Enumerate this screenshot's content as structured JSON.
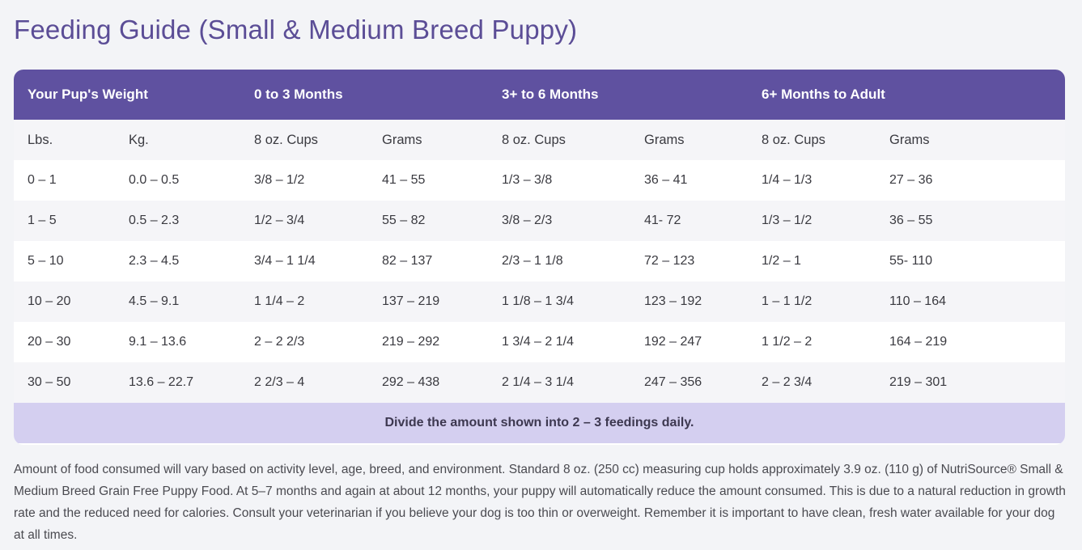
{
  "page": {
    "title": "Feeding Guide (Small & Medium Breed Puppy)"
  },
  "table": {
    "group_headers": {
      "weight": "Your Pup's Weight",
      "age_0_3": "0 to 3 Months",
      "age_3_6": "3+ to 6 Months",
      "age_6_adult": "6+ Months to Adult"
    },
    "sub_headers": [
      "Lbs.",
      "Kg.",
      "8 oz. Cups",
      "Grams",
      "8 oz. Cups",
      "Grams",
      "8 oz. Cups",
      "Grams"
    ],
    "rows": [
      [
        "0 – 1",
        "0.0 – 0.5",
        "3/8 – 1/2",
        "41 – 55",
        "1/3 – 3/8",
        "36 – 41",
        "1/4 – 1/3",
        "27 – 36"
      ],
      [
        "1 – 5",
        "0.5 – 2.3",
        "1/2 – 3/4",
        "55 – 82",
        "3/8 – 2/3",
        "41- 72",
        "1/3 – 1/2",
        "36 – 55"
      ],
      [
        "5 – 10",
        "2.3 – 4.5",
        "3/4 – 1 1/4",
        "82 – 137",
        "2/3 – 1 1/8",
        "72 – 123",
        "1/2 – 1",
        "55- 110"
      ],
      [
        "10 – 20",
        "4.5 – 9.1",
        "1 1/4 – 2",
        "137 – 219",
        "1 1/8 – 1 3/4",
        "123 – 192",
        "1 – 1 1/2",
        "110 – 164"
      ],
      [
        "20 – 30",
        "9.1 – 13.6",
        "2 – 2 2/3",
        "219 – 292",
        "1 3/4 – 2 1/4",
        "192 – 247",
        "1 1/2 – 2",
        "164 – 219"
      ],
      [
        "30 – 50",
        "13.6 – 22.7",
        "2 2/3 – 4",
        "292 – 438",
        "2 1/4 – 3 1/4",
        "247 – 356",
        "2 – 2 3/4",
        "219 – 301"
      ]
    ],
    "footer": "Divide the amount shown into 2 – 3 feedings daily."
  },
  "note": "Amount of food consumed will vary based on activity level, age, breed, and environment. Standard 8 oz. (250 cc) measuring cup holds approximately 3.9 oz. (110 g) of NutriSource® Small & Medium Breed Grain Free Puppy Food. At 5–7 months and again at about 12 months, your puppy will automatically reduce the amount consumed. This is due to a natural reduction in growth rate and the reduced need for calories. Consult your veterinarian if you believe your dog is too thin or overweight. Remember it is important to have clean, fresh water available for your dog at all times.",
  "colors": {
    "accent": "#5f51a0",
    "title": "#5b4d96",
    "footer_band": "#d4cff0",
    "background": "#f3f4f7"
  }
}
